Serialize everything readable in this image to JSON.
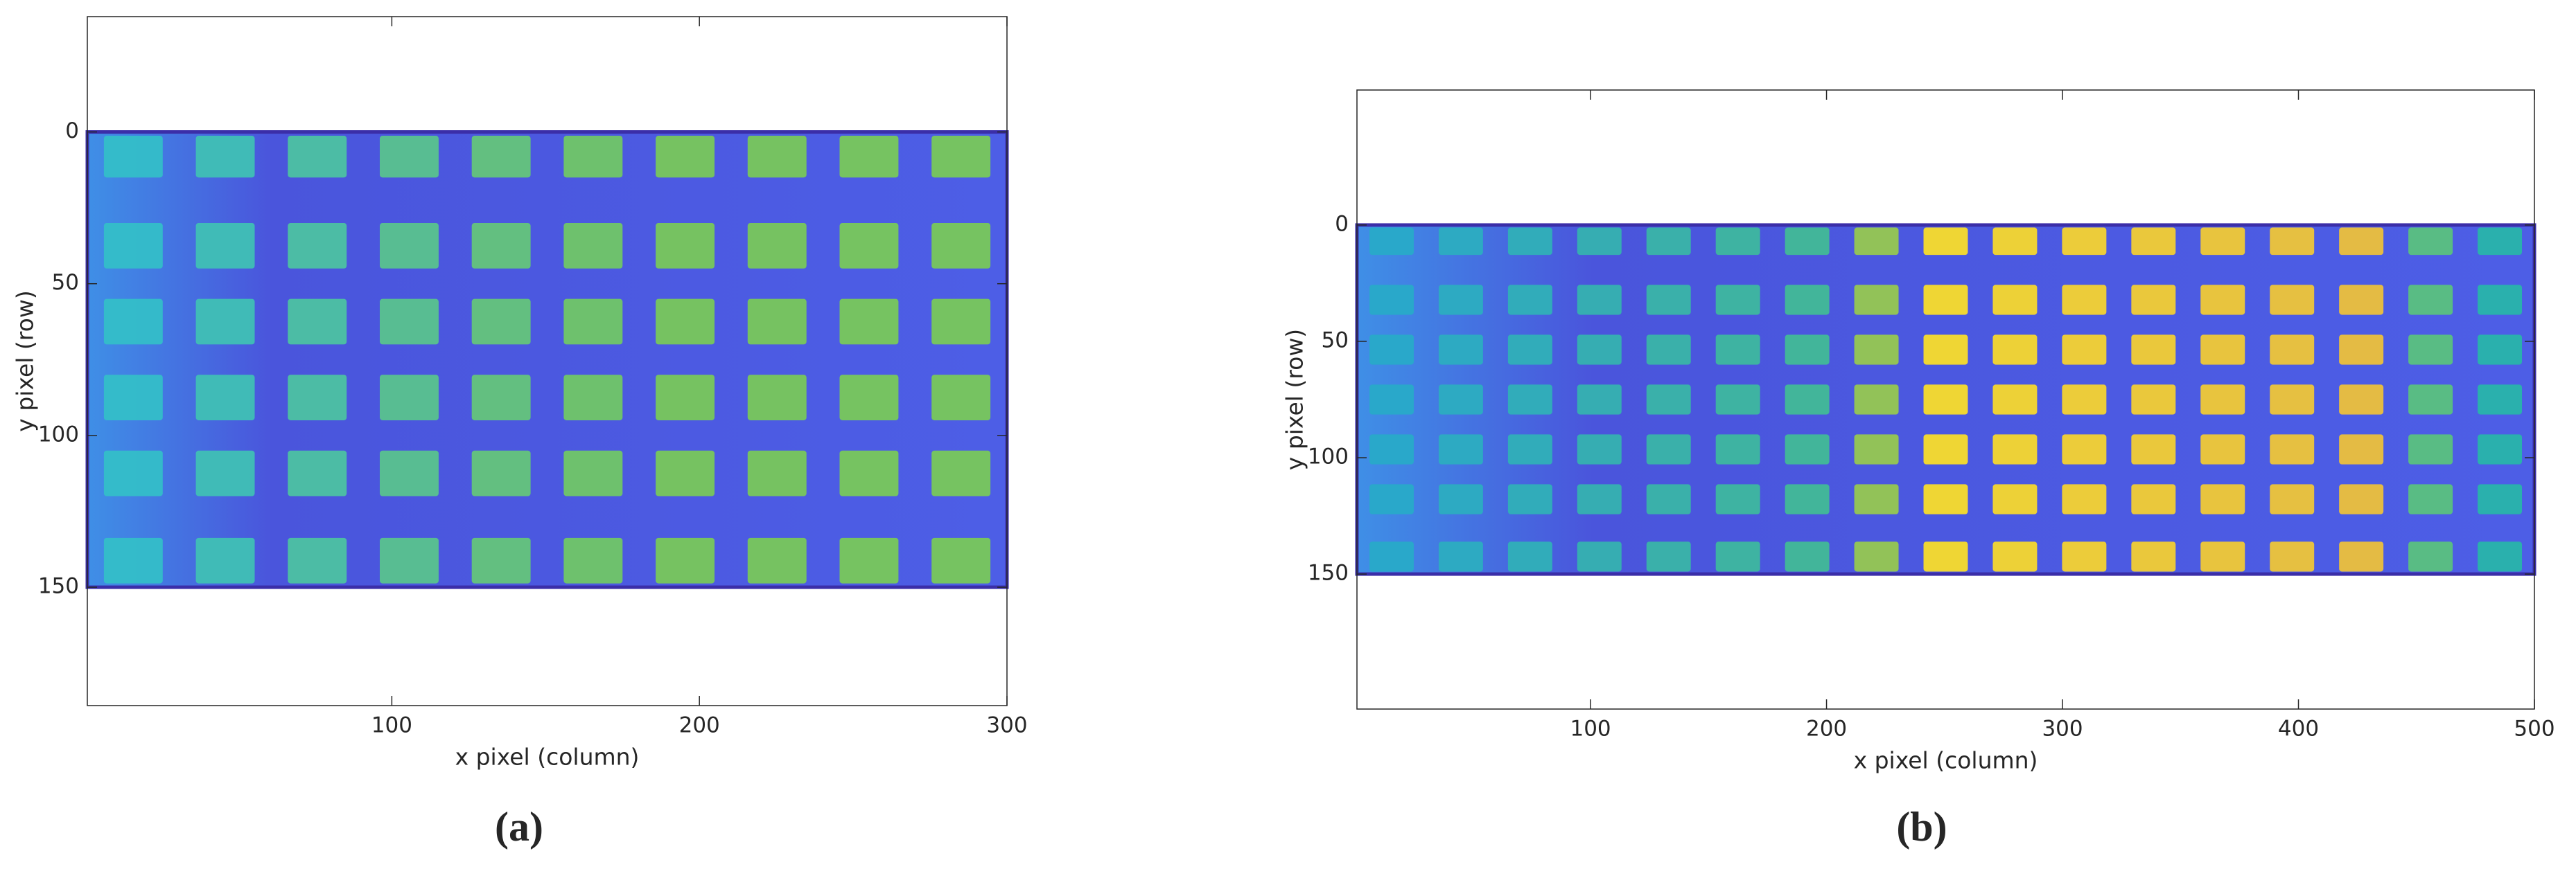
{
  "chart_data": [
    {
      "type": "image",
      "label": "(a)",
      "xlabel": "x pixel (column)",
      "ylabel": "y pixel (row)",
      "xlim": [
        1,
        300
      ],
      "ylim": [
        -38,
        189
      ],
      "y_reversed": true,
      "extent": {
        "x": [
          1,
          300
        ],
        "y": [
          0,
          150
        ]
      },
      "xticks": [
        100,
        200,
        300
      ],
      "yticks": [
        0,
        50,
        100,
        150
      ]
    },
    {
      "type": "image",
      "label": "(b)",
      "xlabel": "x pixel (column)",
      "ylabel": "y pixel (row)",
      "xlim": [
        1,
        500
      ],
      "ylim": [
        -58,
        208
      ],
      "y_reversed": true,
      "extent": {
        "x": [
          1,
          500
        ],
        "y": [
          0,
          150
        ]
      },
      "xticks": [
        100,
        200,
        300,
        400,
        500
      ],
      "yticks": [
        0,
        50,
        100,
        150
      ]
    }
  ]
}
